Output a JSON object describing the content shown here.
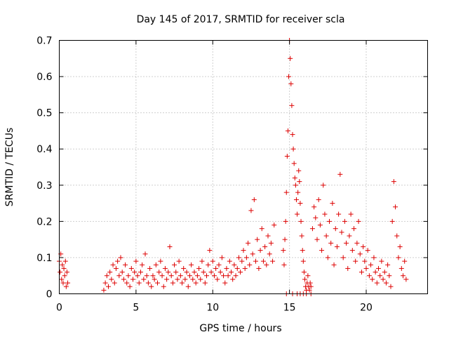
{
  "chart_data": {
    "type": "scatter",
    "title": "Day 145 of 2017, SRMTID for receiver scla",
    "xlabel": "GPS time / hours",
    "ylabel": "SRMTID / TECUs",
    "xlim": [
      0,
      24
    ],
    "ylim": [
      0,
      0.7
    ],
    "xticks": [
      0,
      5,
      10,
      15,
      20
    ],
    "xtick_labels": [
      "0",
      "5",
      "10",
      "15",
      "20"
    ],
    "yticks": [
      0,
      0.1,
      0.2,
      0.3,
      0.4,
      0.5,
      0.6,
      0.7
    ],
    "ytick_labels": [
      "0",
      "0.1",
      "0.2",
      "0.3",
      "0.4",
      "0.5",
      "0.6",
      "0.7"
    ],
    "grid": true,
    "marker": "+",
    "color": "#dd0000",
    "series": [
      {
        "name": "SRMTID",
        "x": [
          0.0,
          0.05,
          0.1,
          0.15,
          0.2,
          0.25,
          0.3,
          0.35,
          0.4,
          0.45,
          0.5,
          0.55,
          2.9,
          3.0,
          3.1,
          3.2,
          3.3,
          3.4,
          3.5,
          3.6,
          3.7,
          3.8,
          3.9,
          4.0,
          4.1,
          4.2,
          4.3,
          4.4,
          4.5,
          4.6,
          4.7,
          4.8,
          4.9,
          5.0,
          5.1,
          5.2,
          5.3,
          5.4,
          5.5,
          5.6,
          5.7,
          5.8,
          5.9,
          6.0,
          6.1,
          6.2,
          6.3,
          6.4,
          6.5,
          6.6,
          6.7,
          6.8,
          6.9,
          7.0,
          7.1,
          7.2,
          7.3,
          7.4,
          7.5,
          7.6,
          7.7,
          7.8,
          7.9,
          8.0,
          8.1,
          8.2,
          8.3,
          8.4,
          8.5,
          8.6,
          8.7,
          8.8,
          8.9,
          9.0,
          9.1,
          9.2,
          9.3,
          9.4,
          9.5,
          9.6,
          9.7,
          9.8,
          9.9,
          10.0,
          10.1,
          10.2,
          10.3,
          10.4,
          10.5,
          10.6,
          10.7,
          10.8,
          10.9,
          11.0,
          11.1,
          11.2,
          11.3,
          11.4,
          11.5,
          11.6,
          11.7,
          11.8,
          11.9,
          12.0,
          12.1,
          12.2,
          12.3,
          12.4,
          12.5,
          12.6,
          12.7,
          12.8,
          12.9,
          13.0,
          13.1,
          13.2,
          13.3,
          13.4,
          13.5,
          13.6,
          13.7,
          13.8,
          13.9,
          14.0,
          14.6,
          14.65,
          14.7,
          14.75,
          14.8,
          14.85,
          14.9,
          14.95,
          15.0,
          15.05,
          15.1,
          15.15,
          15.2,
          15.25,
          15.3,
          15.35,
          15.4,
          15.45,
          15.5,
          15.55,
          15.6,
          15.65,
          15.7,
          15.75,
          15.8,
          15.85,
          15.9,
          15.95,
          16.0,
          16.05,
          16.1,
          16.15,
          16.2,
          16.25,
          16.3,
          16.35,
          16.4,
          16.5,
          16.6,
          16.7,
          16.8,
          16.9,
          17.0,
          17.1,
          17.2,
          17.3,
          17.4,
          17.5,
          17.6,
          17.7,
          17.8,
          17.9,
          18.0,
          18.1,
          18.2,
          18.3,
          18.4,
          18.5,
          18.6,
          18.7,
          18.8,
          18.9,
          19.0,
          19.1,
          19.2,
          19.3,
          19.4,
          19.5,
          19.6,
          19.7,
          19.8,
          19.9,
          20.0,
          20.1,
          20.2,
          20.3,
          20.4,
          20.5,
          20.6,
          20.7,
          20.8,
          20.9,
          21.0,
          21.1,
          21.2,
          21.3,
          21.4,
          21.5,
          21.6,
          21.7,
          21.8,
          21.9,
          22.0,
          22.1,
          22.2,
          22.3,
          22.4,
          22.5,
          22.6
        ],
        "y": [
          0.09,
          0.06,
          0.11,
          0.04,
          0.08,
          0.03,
          0.07,
          0.05,
          0.09,
          0.02,
          0.06,
          0.03,
          0.01,
          0.03,
          0.05,
          0.02,
          0.06,
          0.04,
          0.08,
          0.03,
          0.07,
          0.09,
          0.05,
          0.1,
          0.06,
          0.04,
          0.08,
          0.03,
          0.05,
          0.02,
          0.07,
          0.04,
          0.06,
          0.09,
          0.05,
          0.03,
          0.06,
          0.08,
          0.04,
          0.11,
          0.05,
          0.03,
          0.07,
          0.02,
          0.05,
          0.04,
          0.08,
          0.03,
          0.06,
          0.09,
          0.05,
          0.02,
          0.07,
          0.04,
          0.06,
          0.13,
          0.05,
          0.03,
          0.08,
          0.06,
          0.04,
          0.09,
          0.05,
          0.03,
          0.07,
          0.04,
          0.06,
          0.02,
          0.05,
          0.08,
          0.04,
          0.06,
          0.03,
          0.05,
          0.07,
          0.04,
          0.09,
          0.06,
          0.03,
          0.05,
          0.08,
          0.12,
          0.06,
          0.09,
          0.05,
          0.07,
          0.04,
          0.08,
          0.06,
          0.1,
          0.05,
          0.03,
          0.07,
          0.05,
          0.09,
          0.06,
          0.04,
          0.08,
          0.05,
          0.07,
          0.1,
          0.06,
          0.09,
          0.12,
          0.07,
          0.1,
          0.14,
          0.08,
          0.23,
          0.11,
          0.26,
          0.09,
          0.15,
          0.07,
          0.12,
          0.18,
          0.09,
          0.13,
          0.08,
          0.16,
          0.11,
          0.14,
          0.09,
          0.19,
          0.12,
          0.08,
          0.15,
          0.2,
          0.28,
          0.38,
          0.45,
          0.6,
          0.7,
          0.65,
          0.58,
          0.52,
          0.44,
          0.4,
          0.36,
          0.32,
          0.3,
          0.26,
          0.22,
          0.28,
          0.34,
          0.31,
          0.25,
          0.2,
          0.16,
          0.12,
          0.09,
          0.06,
          0.04,
          0.02,
          0.01,
          0.03,
          0.05,
          0.02,
          0.01,
          0.03,
          0.02,
          0.18,
          0.24,
          0.21,
          0.15,
          0.26,
          0.19,
          0.12,
          0.3,
          0.22,
          0.16,
          0.1,
          0.2,
          0.14,
          0.25,
          0.08,
          0.18,
          0.13,
          0.22,
          0.33,
          0.17,
          0.1,
          0.2,
          0.14,
          0.07,
          0.16,
          0.22,
          0.12,
          0.18,
          0.09,
          0.14,
          0.2,
          0.11,
          0.06,
          0.13,
          0.09,
          0.07,
          0.12,
          0.05,
          0.08,
          0.04,
          0.1,
          0.06,
          0.03,
          0.07,
          0.05,
          0.09,
          0.04,
          0.06,
          0.03,
          0.08,
          0.05,
          0.02,
          0.2,
          0.31,
          0.24,
          0.16,
          0.1,
          0.13,
          0.07,
          0.05,
          0.09,
          0.04
        ]
      }
    ],
    "zero_markers_x": [
      14.8,
      15.2,
      15.5,
      15.7,
      15.9,
      16.1,
      16.4
    ]
  }
}
